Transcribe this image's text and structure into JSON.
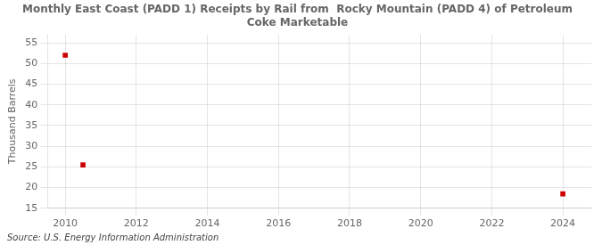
{
  "chart_data": {
    "type": "scatter",
    "title": "Monthly East Coast (PADD 1) Receipts by Rail from  Rocky Mountain (PADD 4) of Petroleum",
    "subtitle": "Coke Marketable",
    "y_label": "Thousand Barrels",
    "annotation": "Source: U.S. Energy Information Administration",
    "x": [
      2010.0,
      2010.5,
      2024.0
    ],
    "values": [
      52,
      25.5,
      18.5
    ],
    "color": "#cc0000",
    "marker": "square",
    "xlim": [
      2009.5,
      2024.8
    ],
    "xticks": [
      2010,
      2012,
      2014,
      2016,
      2018,
      2020,
      2022,
      2024
    ],
    "ylim": [
      15,
      57
    ],
    "yticks": [
      15,
      20,
      25,
      30,
      35,
      40,
      45,
      50,
      55
    ],
    "grid": true
  }
}
